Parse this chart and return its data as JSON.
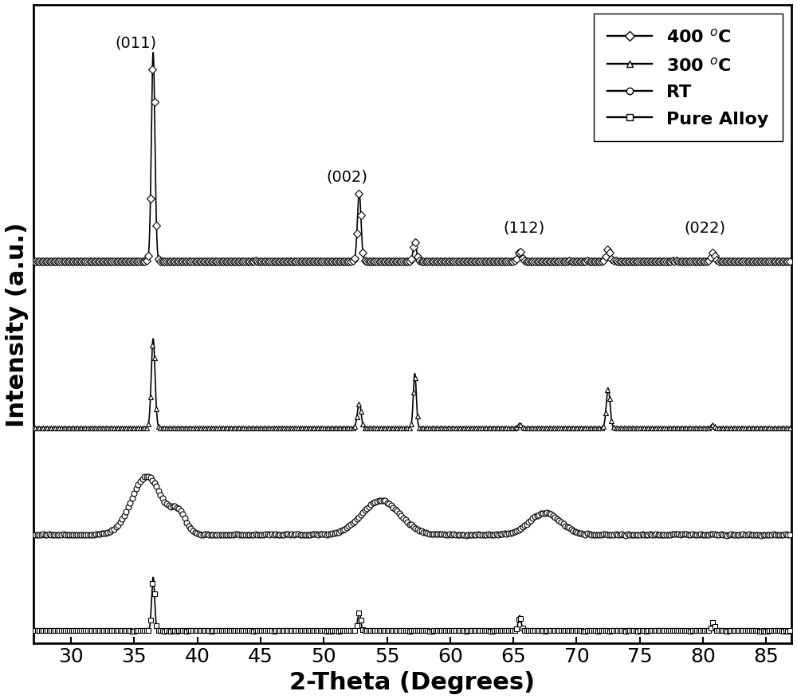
{
  "xlabel": "2-Theta (Degrees)",
  "ylabel": "Intensity (a.u.)",
  "xlim": [
    27,
    87
  ],
  "xticks": [
    30,
    35,
    40,
    45,
    50,
    55,
    60,
    65,
    70,
    75,
    80,
    85
  ],
  "background_color": "#ffffff",
  "label_fontsize": 22,
  "tick_fontsize": 18,
  "legend_fontsize": 16,
  "annotation_fontsize": 14,
  "lw": 1.2,
  "ms": 5,
  "marker_every": 8,
  "offsets": {
    "pure": 0.0,
    "rt": 1.6,
    "c300": 3.4,
    "c400": 6.2
  },
  "ylim": [
    -0.2,
    10.5
  ],
  "peak_annotations": {
    "011": {
      "x": 35.5,
      "label": "(011)"
    },
    "002": {
      "x": 50.5,
      "label": "(002)"
    },
    "112": {
      "x": 64.5,
      "label": "(112)"
    },
    "022": {
      "x": 79.0,
      "label": "(022)"
    }
  }
}
